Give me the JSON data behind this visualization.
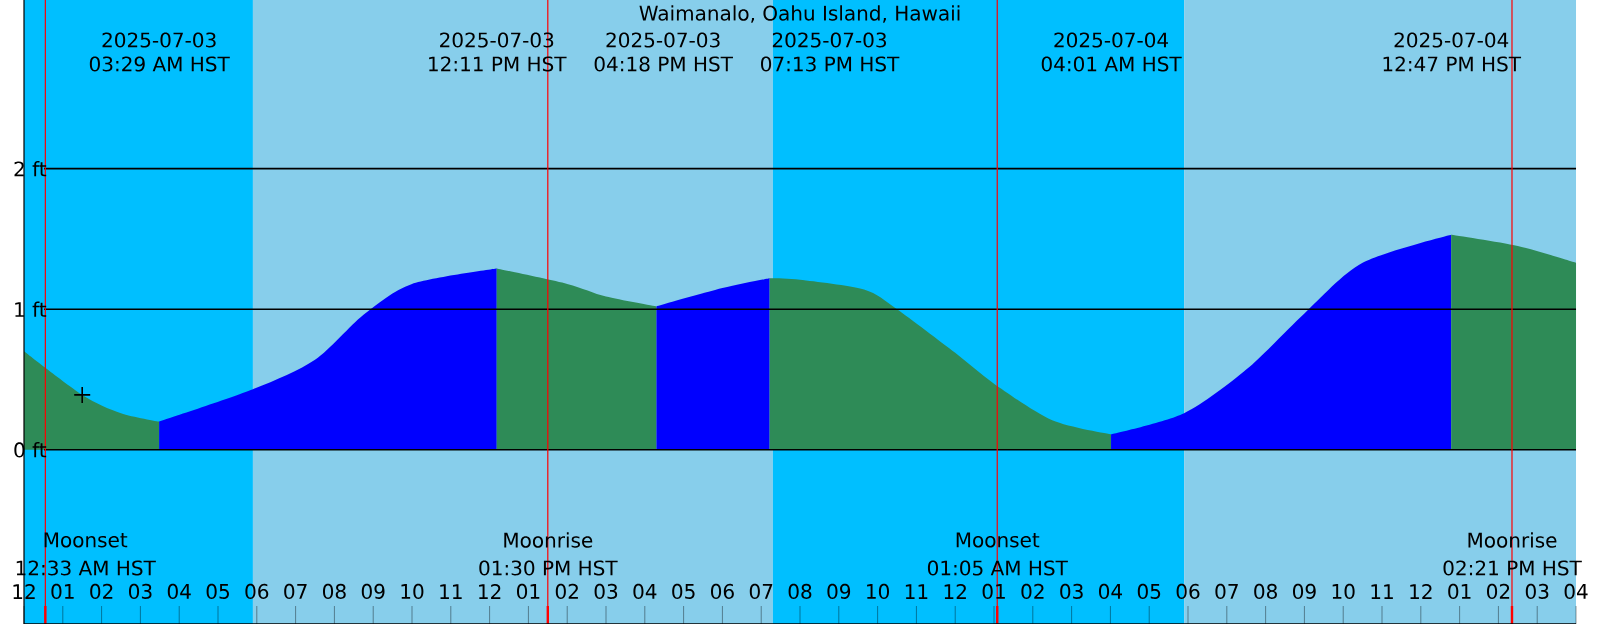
{
  "chart_data": {
    "type": "area",
    "title": "Waimanalo, Oahu Island, Hawaii",
    "xlim": [
      "2025-07-03T00:00",
      "2025-07-04T16:00"
    ],
    "ylim": [
      -1.24,
      3.2
    ],
    "xticks": [
      {
        "value": "2025-07-03T00:00",
        "label": "12"
      },
      {
        "value": "2025-07-03T01:00",
        "label": "01"
      },
      {
        "value": "2025-07-03T02:00",
        "label": "02"
      },
      {
        "value": "2025-07-03T03:00",
        "label": "03"
      },
      {
        "value": "2025-07-03T04:00",
        "label": "04"
      },
      {
        "value": "2025-07-03T05:00",
        "label": "05"
      },
      {
        "value": "2025-07-03T06:00",
        "label": "06"
      },
      {
        "value": "2025-07-03T07:00",
        "label": "07"
      },
      {
        "value": "2025-07-03T08:00",
        "label": "08"
      },
      {
        "value": "2025-07-03T09:00",
        "label": "09"
      },
      {
        "value": "2025-07-03T10:00",
        "label": "10"
      },
      {
        "value": "2025-07-03T11:00",
        "label": "11"
      },
      {
        "value": "2025-07-03T12:00",
        "label": "12"
      },
      {
        "value": "2025-07-03T13:00",
        "label": "01"
      },
      {
        "value": "2025-07-03T14:00",
        "label": "02"
      },
      {
        "value": "2025-07-03T15:00",
        "label": "03"
      },
      {
        "value": "2025-07-03T16:00",
        "label": "04"
      },
      {
        "value": "2025-07-03T17:00",
        "label": "05"
      },
      {
        "value": "2025-07-03T18:00",
        "label": "06"
      },
      {
        "value": "2025-07-03T19:00",
        "label": "07"
      },
      {
        "value": "2025-07-03T20:00",
        "label": "08"
      },
      {
        "value": "2025-07-03T21:00",
        "label": "09"
      },
      {
        "value": "2025-07-03T22:00",
        "label": "10"
      },
      {
        "value": "2025-07-03T23:00",
        "label": "11"
      },
      {
        "value": "2025-07-04T00:00",
        "label": "12"
      },
      {
        "value": "2025-07-04T01:00",
        "label": "01"
      },
      {
        "value": "2025-07-04T02:00",
        "label": "02"
      },
      {
        "value": "2025-07-04T03:00",
        "label": "03"
      },
      {
        "value": "2025-07-04T04:00",
        "label": "04"
      },
      {
        "value": "2025-07-04T05:00",
        "label": "05"
      },
      {
        "value": "2025-07-04T06:00",
        "label": "06"
      },
      {
        "value": "2025-07-04T07:00",
        "label": "07"
      },
      {
        "value": "2025-07-04T08:00",
        "label": "08"
      },
      {
        "value": "2025-07-04T09:00",
        "label": "09"
      },
      {
        "value": "2025-07-04T10:00",
        "label": "10"
      },
      {
        "value": "2025-07-04T11:00",
        "label": "11"
      },
      {
        "value": "2025-07-04T12:00",
        "label": "12"
      },
      {
        "value": "2025-07-04T13:00",
        "label": "01"
      },
      {
        "value": "2025-07-04T14:00",
        "label": "02"
      },
      {
        "value": "2025-07-04T15:00",
        "label": "03"
      },
      {
        "value": "2025-07-04T16:00",
        "label": "04"
      }
    ],
    "yticks": [
      {
        "value": 0,
        "label": "0 ft"
      },
      {
        "value": 1,
        "label": "1 ft"
      },
      {
        "value": 2,
        "label": "2 ft"
      }
    ],
    "grid": "y",
    "bands": [
      {
        "axis": "x",
        "from": "2025-07-03T00:00",
        "to": "2025-07-03T05:54",
        "color": "#00bfff"
      },
      {
        "axis": "x",
        "from": "2025-07-03T05:54",
        "to": "2025-07-03T19:18",
        "color": "#87ceeb"
      },
      {
        "axis": "x",
        "from": "2025-07-03T19:18",
        "to": "2025-07-04T05:54",
        "color": "#00bfff"
      },
      {
        "axis": "x",
        "from": "2025-07-04T05:54",
        "to": "2025-07-04T16:00",
        "color": "#87ceeb"
      }
    ],
    "ref_lines": [
      {
        "axis": "x",
        "value": "2025-07-03T00:33",
        "color": "#ff0000"
      },
      {
        "axis": "x",
        "value": "2025-07-03T13:30",
        "color": "#ff0000"
      },
      {
        "axis": "x",
        "value": "2025-07-04T01:05",
        "color": "#ff0000"
      },
      {
        "axis": "x",
        "value": "2025-07-04T14:21",
        "color": "#ff0000"
      }
    ],
    "series": [
      {
        "color": "#2e8b57",
        "x": [
          "2025-07-03T00:00",
          "2025-07-03T01:30",
          "2025-07-03T02:30",
          "2025-07-03T03:29"
        ],
        "values": [
          0.7,
          0.39,
          0.26,
          0.2
        ]
      },
      {
        "color": "#0000ff",
        "x": [
          "2025-07-03T03:29",
          "2025-07-03T05:54",
          "2025-07-03T07:30",
          "2025-07-03T08:45",
          "2025-07-03T10:00",
          "2025-07-03T12:11"
        ],
        "values": [
          0.2,
          0.43,
          0.64,
          0.96,
          1.18,
          1.29
        ]
      },
      {
        "color": "#2e8b57",
        "x": [
          "2025-07-03T12:11",
          "2025-07-03T14:00",
          "2025-07-03T15:00",
          "2025-07-03T16:18"
        ],
        "values": [
          1.29,
          1.18,
          1.09,
          1.02
        ]
      },
      {
        "color": "#0000ff",
        "x": [
          "2025-07-03T16:18",
          "2025-07-03T18:00",
          "2025-07-03T19:13"
        ],
        "values": [
          1.02,
          1.15,
          1.22
        ]
      },
      {
        "color": "#2e8b57",
        "x": [
          "2025-07-03T19:13",
          "2025-07-03T20:00",
          "2025-07-03T21:39",
          "2025-07-03T22:30",
          "2025-07-04T00:00",
          "2025-07-04T01:00",
          "2025-07-04T02:30",
          "2025-07-04T04:01"
        ],
        "values": [
          1.22,
          1.21,
          1.14,
          1.0,
          0.69,
          0.47,
          0.21,
          0.11
        ]
      },
      {
        "color": "#0000ff",
        "x": [
          "2025-07-04T04:01",
          "2025-07-04T05:54",
          "2025-07-04T07:30",
          "2025-07-04T09:00",
          "2025-07-04T10:30",
          "2025-07-04T12:47"
        ],
        "values": [
          0.11,
          0.26,
          0.57,
          0.97,
          1.33,
          1.53
        ]
      },
      {
        "color": "#2e8b57",
        "x": [
          "2025-07-04T12:47",
          "2025-07-04T14:30",
          "2025-07-04T16:00"
        ],
        "values": [
          1.53,
          1.45,
          1.33
        ]
      },
      {
        "type": "scatter",
        "marker": "cross",
        "color": "#000000",
        "x": [
          "2025-07-03T01:30"
        ],
        "values": [
          0.39
        ]
      }
    ],
    "annotations": [
      "2025-07-03",
      "03:29 AM HST",
      "2025-07-03",
      "12:11 PM HST",
      "2025-07-03",
      "04:18 PM HST",
      "2025-07-03",
      "07:13 PM HST",
      "2025-07-04",
      "04:01 AM HST",
      "2025-07-04",
      "12:47 PM HST",
      "Moonset",
      "12:33 AM HST",
      "Moonrise",
      "01:30 PM HST",
      "Moonset",
      "01:05 AM HST",
      "Moonrise",
      "02:21 PM HST"
    ]
  }
}
